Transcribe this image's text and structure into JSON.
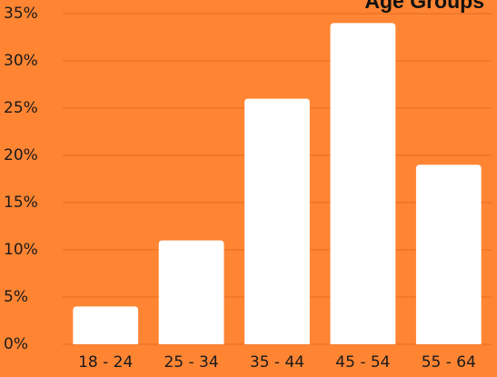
{
  "chart_data": {
    "type": "bar",
    "title": "Age Groups",
    "categories": [
      "18 - 24",
      "25 - 34",
      "35 - 44",
      "45 - 54",
      "55 - 64"
    ],
    "values": [
      4,
      11,
      26,
      34,
      19
    ],
    "color": "#ffffff",
    "ylim": [
      0,
      35
    ],
    "yticks": [
      {
        "value": 0,
        "label": "0%"
      },
      {
        "value": 5,
        "label": "5%"
      },
      {
        "value": 10,
        "label": "10%"
      },
      {
        "value": 15,
        "label": "15%"
      },
      {
        "value": 20,
        "label": "20%"
      },
      {
        "value": 25,
        "label": "25%"
      },
      {
        "value": 30,
        "label": "30%"
      },
      {
        "value": 35,
        "label": "35%"
      }
    ],
    "grid": true
  }
}
